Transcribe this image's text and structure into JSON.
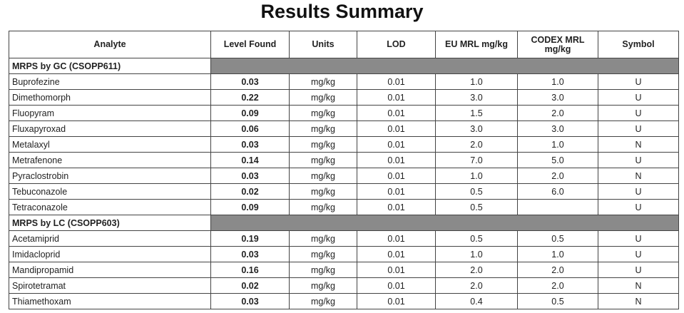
{
  "header": {
    "title": "Results Summary"
  },
  "table": {
    "columns": [
      "Analyte",
      "Level Found",
      "Units",
      "LOD",
      "EU MRL mg/kg",
      "CODEX MRL mg/kg",
      "Symbol"
    ],
    "sections": [
      {
        "title": "MRPS by GC (CSOPP611)",
        "rows": [
          [
            "Buprofezine",
            "0.03",
            "mg/kg",
            "0.01",
            "1.0",
            "1.0",
            "U"
          ],
          [
            "Dimethomorph",
            "0.22",
            "mg/kg",
            "0.01",
            "3.0",
            "3.0",
            "U"
          ],
          [
            "Fluopyram",
            "0.09",
            "mg/kg",
            "0.01",
            "1.5",
            "2.0",
            "U"
          ],
          [
            "Fluxapyroxad",
            "0.06",
            "mg/kg",
            "0.01",
            "3.0",
            "3.0",
            "U"
          ],
          [
            "Metalaxyl",
            "0.03",
            "mg/kg",
            "0.01",
            "2.0",
            "1.0",
            "N"
          ],
          [
            "Metrafenone",
            "0.14",
            "mg/kg",
            "0.01",
            "7.0",
            "5.0",
            "U"
          ],
          [
            "Pyraclostrobin",
            "0.03",
            "mg/kg",
            "0.01",
            "1.0",
            "2.0",
            "N"
          ],
          [
            "Tebuconazole",
            "0.02",
            "mg/kg",
            "0.01",
            "0.5",
            "6.0",
            "U"
          ],
          [
            "Tetraconazole",
            "0.09",
            "mg/kg",
            "0.01",
            "0.5",
            null,
            "U"
          ]
        ]
      },
      {
        "title": "MRPS by LC (CSOPP603)",
        "rows": [
          [
            "Acetamiprid",
            "0.19",
            "mg/kg",
            "0.01",
            "0.5",
            "0.5",
            "U"
          ],
          [
            "Imidacloprid",
            "0.03",
            "mg/kg",
            "0.01",
            "1.0",
            "1.0",
            "U"
          ],
          [
            "Mandipropamid",
            "0.16",
            "mg/kg",
            "0.01",
            "2.0",
            "2.0",
            "U"
          ],
          [
            "Spirotetramat",
            "0.02",
            "mg/kg",
            "0.01",
            "2.0",
            "2.0",
            "N"
          ],
          [
            "Thiamethoxam",
            "0.03",
            "mg/kg",
            "0.01",
            "0.4",
            "0.5",
            "N"
          ]
        ]
      }
    ]
  }
}
